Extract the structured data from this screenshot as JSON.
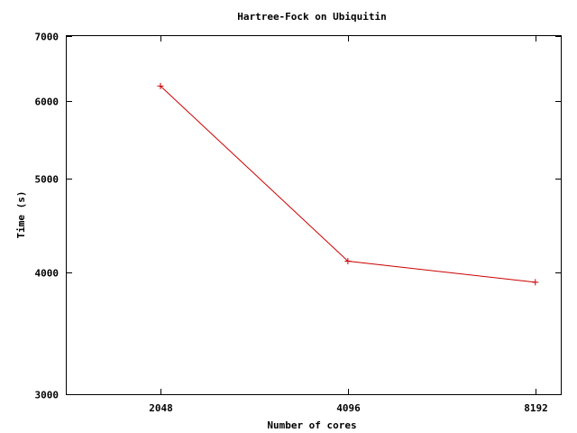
{
  "chart_data": {
    "type": "line",
    "title": "Hartree-Fock on Ubiquitin",
    "xlabel": "Number of cores",
    "ylabel": "Time (s)",
    "xscale": "log",
    "yscale": "log",
    "x_ticks": [
      2048,
      4096,
      8192
    ],
    "x_tick_labels": [
      "2048",
      "4096",
      "8192"
    ],
    "xlim": [
      1448,
      9000
    ],
    "y_ticks": [
      3000,
      4000,
      5000,
      6000,
      7000
    ],
    "y_tick_labels": [
      "3000",
      "4000",
      "5000",
      "6000",
      "7000"
    ],
    "ylim": [
      3000,
      7000
    ],
    "grid": false,
    "series": [
      {
        "name": "Hartree-Fock",
        "color": "#cc0000",
        "marker": "plus",
        "x": [
          2048,
          4096,
          8192
        ],
        "y": [
          6220,
          4110,
          3910
        ]
      }
    ]
  }
}
